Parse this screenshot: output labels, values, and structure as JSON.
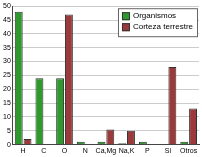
{
  "chart_data": {
    "type": "bar",
    "categories": [
      "H",
      "C",
      "O",
      "N",
      "Ca,Mg",
      "Na,K",
      "P",
      "Si",
      "Otros"
    ],
    "series": [
      {
        "name": "Organismos",
        "color": "#2e9a2e",
        "values": [
          48,
          24,
          24,
          1,
          1,
          0.5,
          1,
          0.1,
          1
        ]
      },
      {
        "name": "Corteza terrestre",
        "color": "#9b3a3a",
        "values": [
          2,
          0.2,
          47,
          0.1,
          5.5,
          5,
          0.1,
          28,
          13
        ]
      }
    ],
    "ylim": [
      0,
      50
    ],
    "yticks": [
      0,
      5,
      10,
      15,
      20,
      25,
      30,
      35,
      40,
      45,
      50
    ],
    "grid": true,
    "legend": "upper right"
  }
}
